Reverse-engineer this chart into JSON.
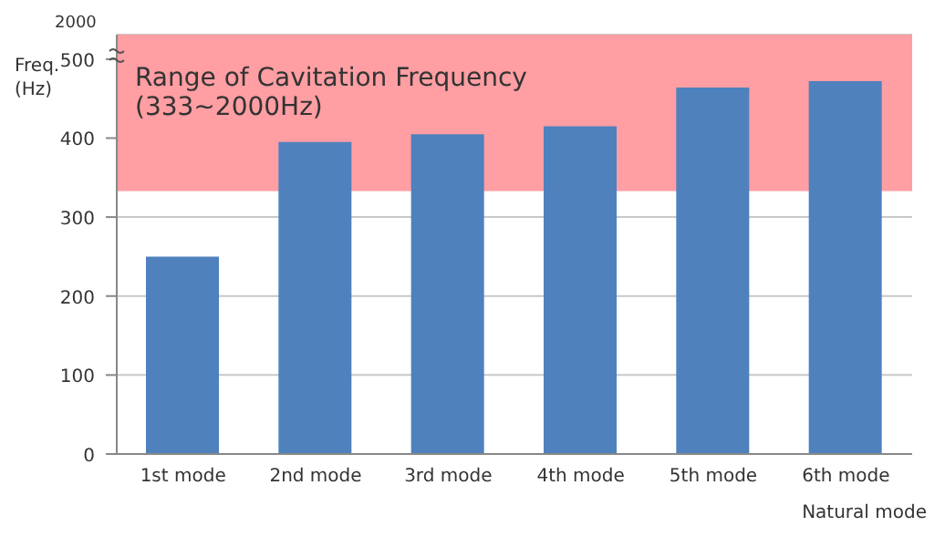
{
  "chart_data": {
    "type": "bar",
    "xlabel": "Natural mode",
    "ylabel": "Freq.\n(Hz)",
    "categories": [
      "1st mode",
      "2nd mode",
      "3rd mode",
      "4th mode",
      "5th mode",
      "6th mode"
    ],
    "values": [
      250,
      395,
      405,
      415,
      464,
      472
    ],
    "color": "#4f81bd",
    "ylim": [
      0,
      531
    ],
    "yticks": [
      0,
      100,
      200,
      300,
      400,
      500
    ],
    "annotations": [
      "2000"
    ],
    "bands": [
      {
        "axis": "y",
        "from": 333,
        "to": 531,
        "label": "Range of Cavitation Frequency\n(333~2000Hz)",
        "color": "#ff9ea3"
      }
    ],
    "grid": "y"
  }
}
